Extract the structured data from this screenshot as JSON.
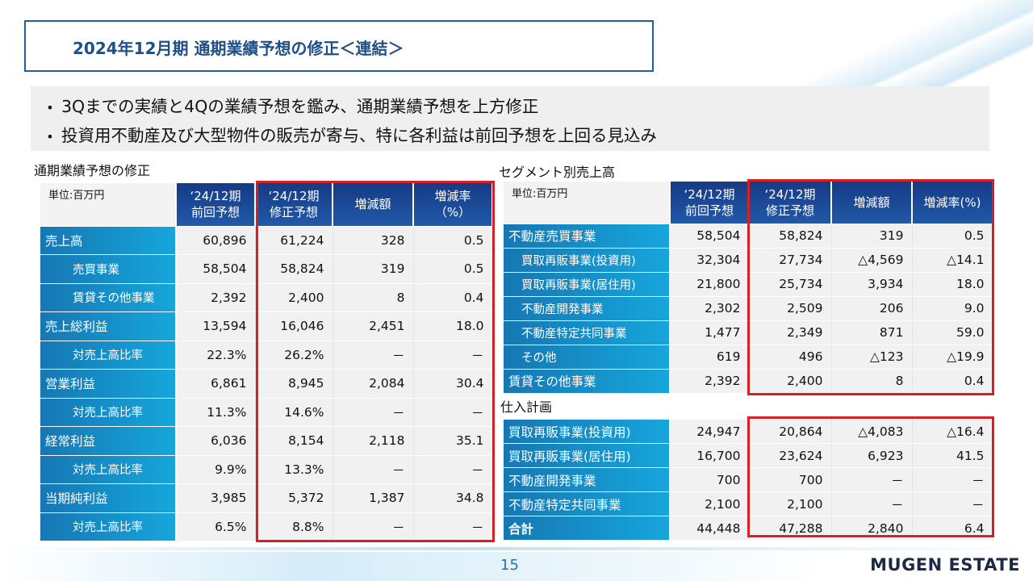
{
  "title": "2024年12月期 通期業績予想の修正＜連結＞",
  "bullets": [
    "3Qまでの実績と4Qの業績予想を鑑み、通期業績予想を上方修正",
    "投資用不動産及び大型物件の販売が寄与、特に各利益は前回予想を上回る見込み"
  ],
  "left_table": {
    "section_title": "通期業績予想の修正",
    "unit": "単位:百万円",
    "headers": [
      "‘24/12期\n前回予想",
      "‘24/12期\n修正予想",
      "増減額",
      "増減率\n（%）"
    ],
    "rows": [
      {
        "label": "売上高",
        "values": [
          "60,896",
          "61,224",
          "328",
          "0.5"
        ]
      },
      {
        "label": "売買事業",
        "values": [
          "58,504",
          "58,824",
          "319",
          "0.5"
        ]
      },
      {
        "label": "賃貸その他事業",
        "values": [
          "2,392",
          "2,400",
          "8",
          "0.4"
        ]
      },
      {
        "label": "売上総利益",
        "values": [
          "13,594",
          "16,046",
          "2,451",
          "18.0"
        ]
      },
      {
        "label": "対売上高比率",
        "values": [
          "22.3%",
          "26.2%",
          "－",
          "－"
        ]
      },
      {
        "label": "営業利益",
        "values": [
          "6,861",
          "8,945",
          "2,084",
          "30.4"
        ]
      },
      {
        "label": "対売上高比率",
        "values": [
          "11.3%",
          "14.6%",
          "－",
          "－"
        ]
      },
      {
        "label": "経常利益",
        "values": [
          "6,036",
          "8,154",
          "2,118",
          "35.1"
        ]
      },
      {
        "label": "対売上高比率",
        "values": [
          "9.9%",
          "13.3%",
          "－",
          "－"
        ]
      },
      {
        "label": "当期純利益",
        "values": [
          "3,985",
          "5,372",
          "1,387",
          "34.8"
        ]
      },
      {
        "label": "対売上高比率",
        "values": [
          "6.5%",
          "8.8%",
          "－",
          "－"
        ]
      }
    ]
  },
  "segment_table": {
    "section_title": "セグメント別売上高",
    "unit": "単位:百万円",
    "headers": [
      "‘24/12期\n前回予想",
      "‘24/12期\n修正予想",
      "増減額",
      "増減率(%)"
    ],
    "rows": [
      {
        "label": "不動産売買事業",
        "values": [
          "58,504",
          "58,824",
          "319",
          "0.5"
        ]
      },
      {
        "label": "買取再販事業(投資用)",
        "values": [
          "32,304",
          "27,734",
          "△4,569",
          "△14.1"
        ]
      },
      {
        "label": "買取再販事業(居住用)",
        "values": [
          "21,800",
          "25,734",
          "3,934",
          "18.0"
        ]
      },
      {
        "label": "不動産開発事業",
        "values": [
          "2,302",
          "2,509",
          "206",
          "9.0"
        ]
      },
      {
        "label": "不動産特定共同事業",
        "values": [
          "1,477",
          "2,349",
          "871",
          "59.0"
        ]
      },
      {
        "label": "その他",
        "values": [
          "619",
          "496",
          "△123",
          "△19.9"
        ]
      },
      {
        "label": "賃貸その他事業",
        "values": [
          "2,392",
          "2,400",
          "8",
          "0.4"
        ]
      }
    ]
  },
  "purchase_table": {
    "section_title": "仕入計画",
    "rows": [
      {
        "label": "買取再販事業(投資用)",
        "values": [
          "24,947",
          "20,864",
          "△4,083",
          "△16.4"
        ]
      },
      {
        "label": "買取再販事業(居住用)",
        "values": [
          "16,700",
          "23,624",
          "6,923",
          "41.5"
        ]
      },
      {
        "label": "不動産開発事業",
        "values": [
          "700",
          "700",
          "－",
          "－"
        ]
      },
      {
        "label": "不動産特定共同事業",
        "values": [
          "2,100",
          "2,100",
          "－",
          "－"
        ]
      },
      {
        "label": "合計",
        "values": [
          "44,448",
          "47,288",
          "2,840",
          "6.4"
        ]
      }
    ]
  },
  "footer": {
    "page_number": "15",
    "brand": "MUGEN ESTATE"
  },
  "colors": {
    "title_border": "#1f5f9a",
    "header_bg": "#163a84",
    "label_bg": "#16a6dc",
    "highlight_box": "#d61f26"
  }
}
